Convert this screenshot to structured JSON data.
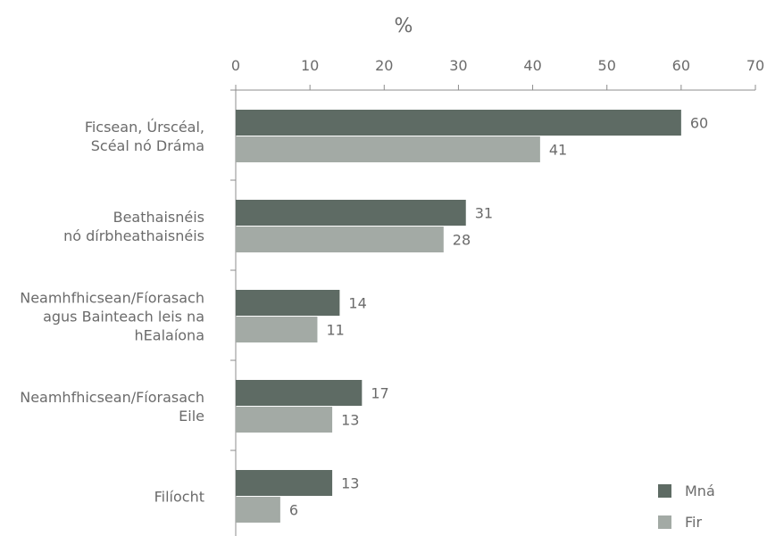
{
  "chart_data": {
    "type": "bar",
    "orientation": "horizontal",
    "title": "",
    "xlabel": "%",
    "ylabel": "",
    "xlim": [
      0,
      70
    ],
    "xticks": [
      "0",
      "10",
      "20",
      "30",
      "40",
      "50",
      "60",
      "70"
    ],
    "x_axis_position": "top",
    "grid": false,
    "legend_position": "bottom-right",
    "categories": [
      [
        "Ficsean, Úrscéal,",
        "Scéal nó Dráma"
      ],
      [
        "Beathaisnéis",
        "nó dírbheathaisnéis"
      ],
      [
        "Neamhfhicsean/Fíorasach",
        "agus Bainteach leis na",
        "hEalaíona"
      ],
      [
        "Neamhfhicsean/Fíorasach",
        "Eile"
      ],
      [
        "Filíocht"
      ]
    ],
    "series": [
      {
        "name": "Mná",
        "color": "#5e6b64",
        "values": [
          60,
          31,
          14,
          17,
          13
        ]
      },
      {
        "name": "Fir",
        "color": "#a3aaa5",
        "values": [
          41,
          28,
          11,
          13,
          6
        ]
      }
    ],
    "axis_color": "#8c8c8c",
    "text_color": "#6b6b6b"
  }
}
